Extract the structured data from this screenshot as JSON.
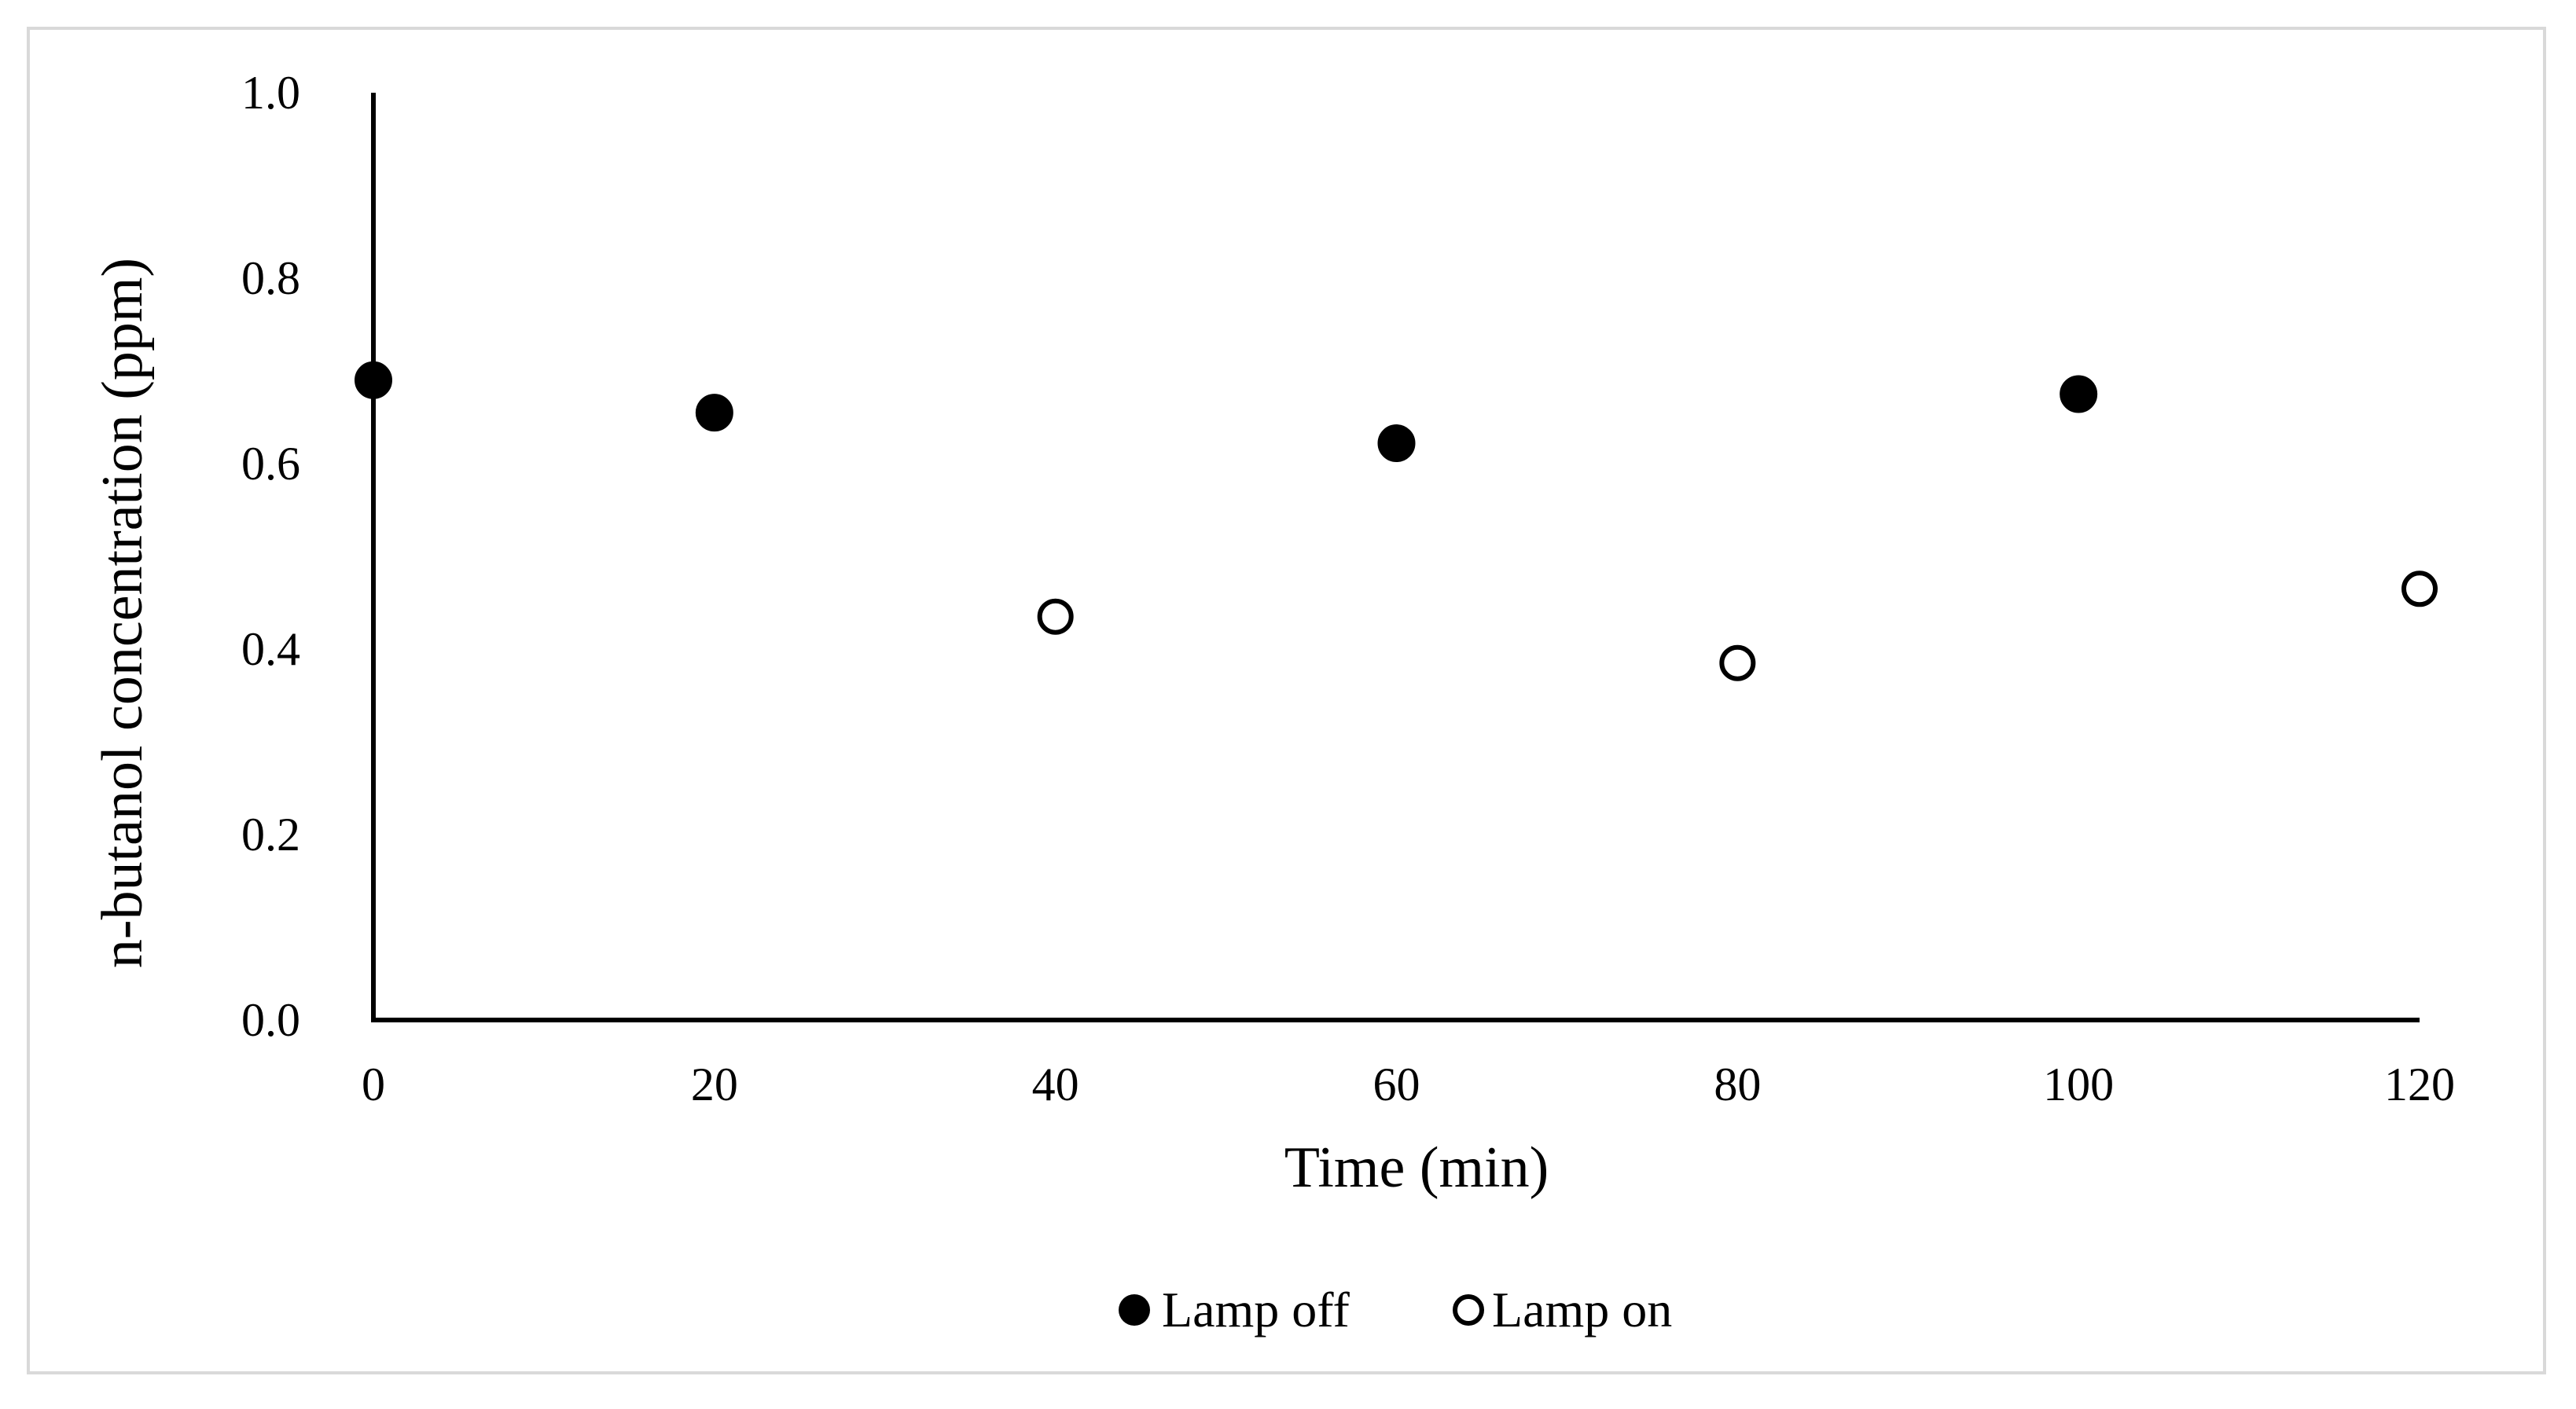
{
  "chart_data": {
    "type": "scatter",
    "xlabel": "Time (min)",
    "ylabel": "n-butanol concentration (ppm)",
    "xlim": [
      0,
      120
    ],
    "ylim": [
      0,
      1.0
    ],
    "x_ticks": [
      "0",
      "20",
      "40",
      "60",
      "80",
      "100",
      "120"
    ],
    "y_ticks": [
      "0.0",
      "0.2",
      "0.4",
      "0.6",
      "0.8",
      "1.0"
    ],
    "grid": false,
    "legend_position": "bottom",
    "series": [
      {
        "name": "Lamp off",
        "marker": "filled-circle",
        "color": "#000000",
        "x": [
          0,
          20,
          60,
          100
        ],
        "y": [
          0.69,
          0.655,
          0.622,
          0.675
        ]
      },
      {
        "name": "Lamp on",
        "marker": "open-circle",
        "color": "#000000",
        "x": [
          40,
          80,
          120
        ],
        "y": [
          0.435,
          0.385,
          0.465
        ]
      }
    ]
  }
}
